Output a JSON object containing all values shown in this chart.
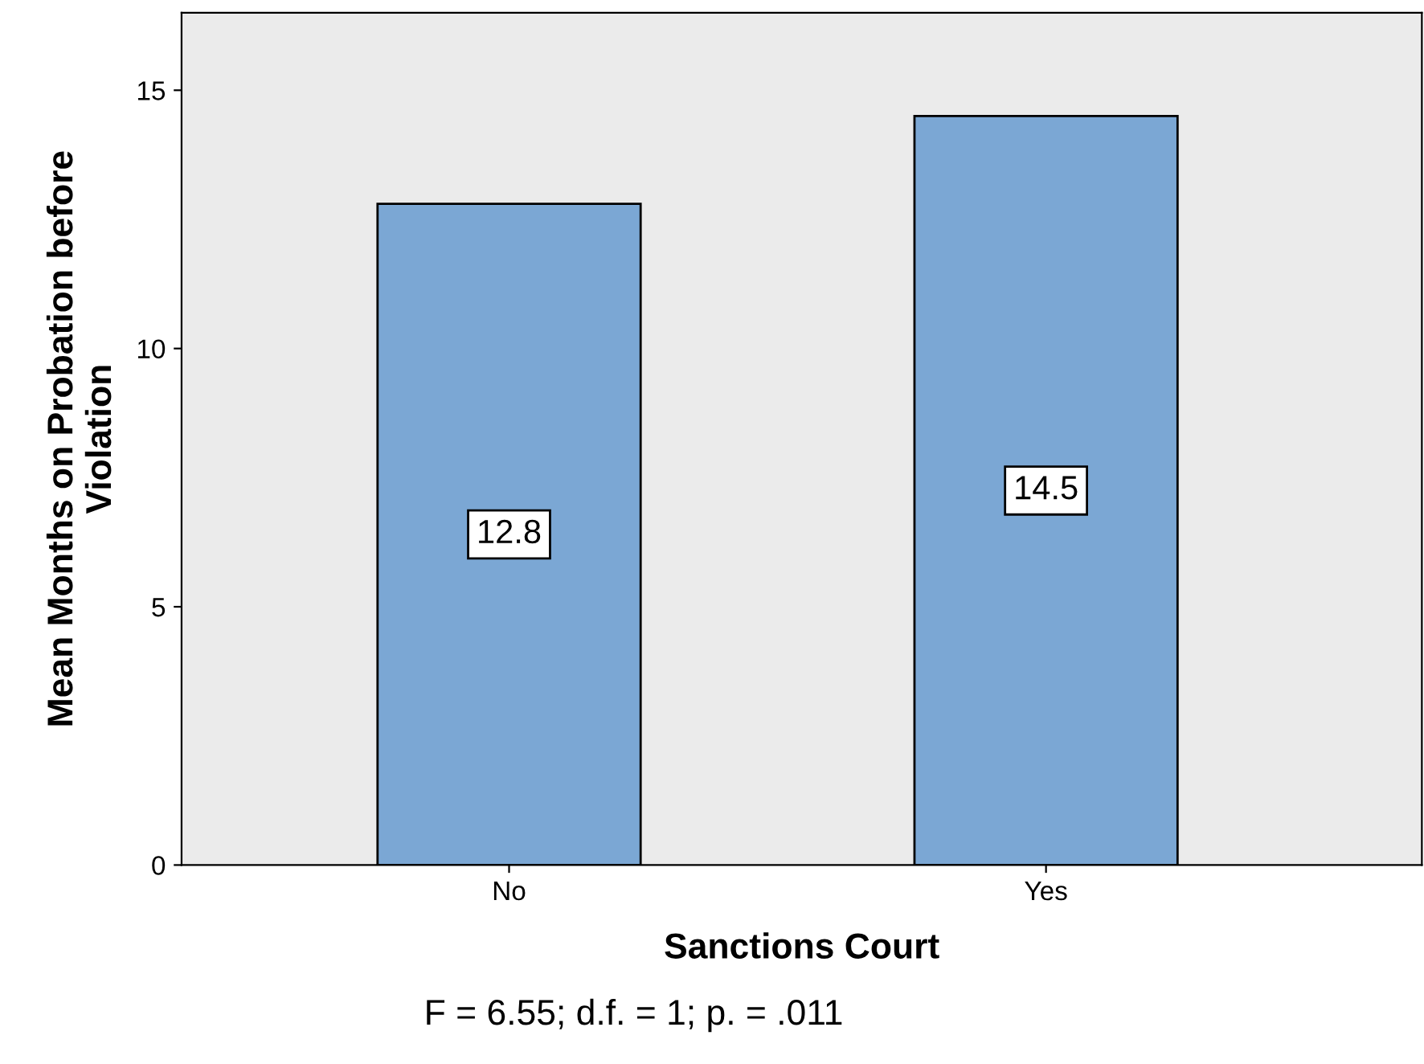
{
  "chart_data": {
    "type": "bar",
    "xlabel": "Sanctions Court",
    "ylabel": "Mean Months on Probation before\nViolation",
    "categories": [
      "No",
      "Yes"
    ],
    "values": [
      12.8,
      14.5
    ],
    "color": "#7ba7d4",
    "ylim": [
      0,
      16.5
    ],
    "yticks": [
      0,
      5,
      10,
      15
    ],
    "grid": false,
    "data_labels": true,
    "annotations": [
      "F = 6.55; d.f. = 1; p. = .011"
    ]
  }
}
